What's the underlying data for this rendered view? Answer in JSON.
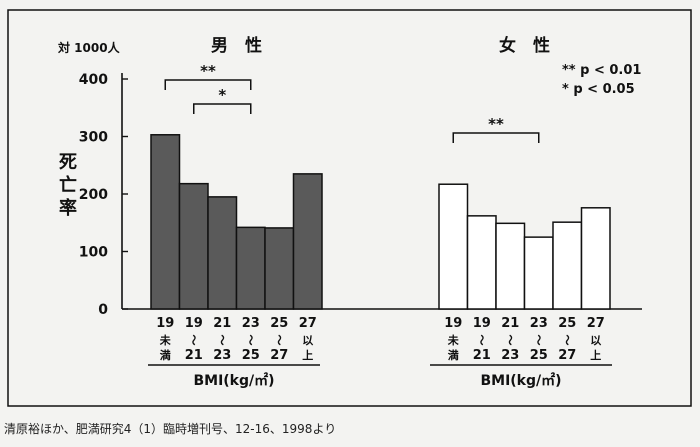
{
  "chart_data": {
    "type": "bar",
    "y_unit_label": "対 1000人",
    "ylabel": "死亡率",
    "ylim": [
      0,
      400
    ],
    "yticks": [
      "0",
      "100",
      "200",
      "300",
      "400"
    ],
    "grid": false,
    "category_labels": [
      [
        "19",
        "未",
        "満"
      ],
      [
        "19",
        "〜",
        "21"
      ],
      [
        "21",
        "〜",
        "23"
      ],
      [
        "23",
        "〜",
        "25"
      ],
      [
        "25",
        "〜",
        "27"
      ],
      [
        "27",
        "以",
        "上"
      ]
    ],
    "panels": [
      {
        "title": "男　性",
        "xlabel": "BMI(kg/㎡)",
        "fill": "#5a5a5a",
        "values": [
          303,
          218,
          195,
          142,
          141,
          235
        ],
        "brackets": [
          {
            "from": 0,
            "to": 3,
            "label": "**"
          },
          {
            "from": 1,
            "to": 3,
            "label": "*"
          }
        ]
      },
      {
        "title": "女　性",
        "xlabel": "BMI(kg/㎡)",
        "fill": "#ffffff",
        "values": [
          217,
          162,
          149,
          125,
          151,
          176
        ],
        "brackets": [
          {
            "from": 0,
            "to": 3,
            "label": "**"
          }
        ]
      }
    ],
    "legend": [
      "** p < 0.01",
      "*   p < 0.05"
    ]
  },
  "source": "清原裕ほか、肥満研究4（1）臨時増刊号、12-16、1998より"
}
